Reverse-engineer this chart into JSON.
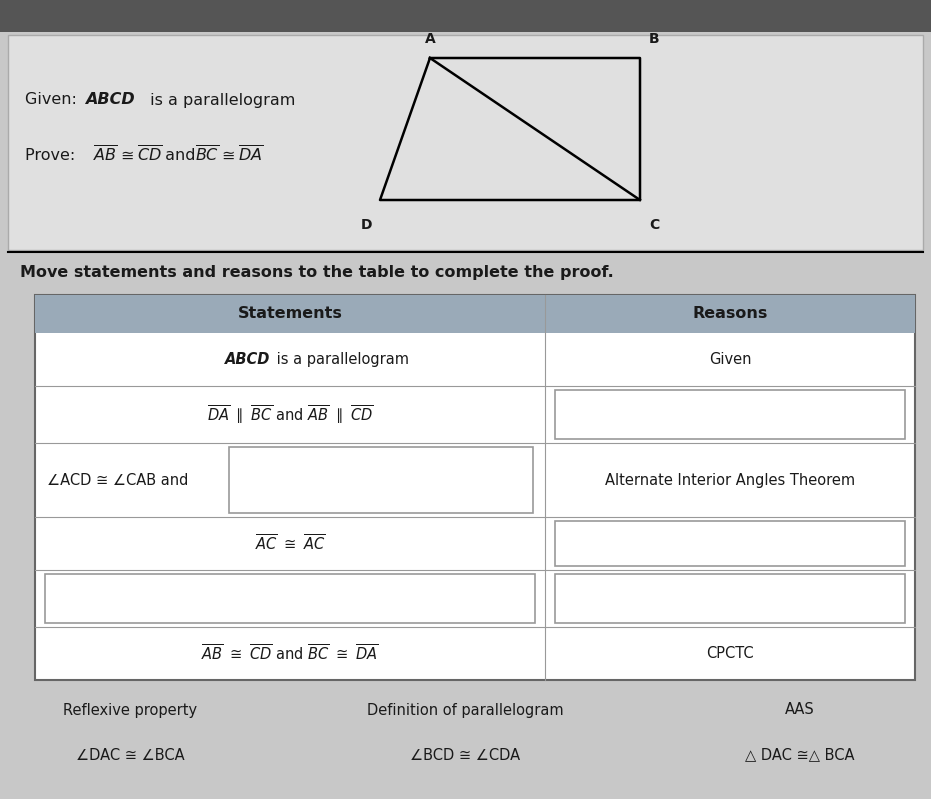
{
  "bg_color": "#c8c8c8",
  "toolbar_color": "#555555",
  "top_section_color": "#e0e0e0",
  "white": "#ffffff",
  "header_color": "#9aaab8",
  "dark": "#1a1a1a",
  "table_header_statements": "Statements",
  "table_header_reasons": "Reasons",
  "rows": [
    {
      "statement": "ABCD is a parallelogram",
      "reason": "Given",
      "stmt_blank": false,
      "rsn_blank": false
    },
    {
      "statement": "DA_parallel_BC_and_AB_parallel_CD",
      "reason": "",
      "stmt_blank": false,
      "rsn_blank": true
    },
    {
      "statement": "angACD_cong_angCAB_and_blank",
      "reason": "Alternate Interior Angles Theorem",
      "stmt_blank": true,
      "rsn_blank": false
    },
    {
      "statement": "AC_cong_AC",
      "reason": "",
      "stmt_blank": false,
      "rsn_blank": true
    },
    {
      "statement": "",
      "reason": "",
      "stmt_blank": true,
      "rsn_blank": true
    },
    {
      "statement": "AB_cong_CD_and_BC_cong_DA",
      "reason": "CPCTC",
      "stmt_blank": false,
      "rsn_blank": false
    }
  ],
  "bottom_items": [
    {
      "col": 0,
      "row": 0,
      "text": "Reflexive property"
    },
    {
      "col": 1,
      "row": 0,
      "text": "Definition of parallelogram"
    },
    {
      "col": 2,
      "row": 0,
      "text": "AAS"
    },
    {
      "col": 0,
      "row": 1,
      "text": "∠DAC ≅ ∠BCA"
    },
    {
      "col": 1,
      "row": 1,
      "text": "∠BCD ≅ ∠CDA"
    },
    {
      "col": 2,
      "row": 1,
      "text": "△ DAC ≅△ BCA"
    }
  ]
}
